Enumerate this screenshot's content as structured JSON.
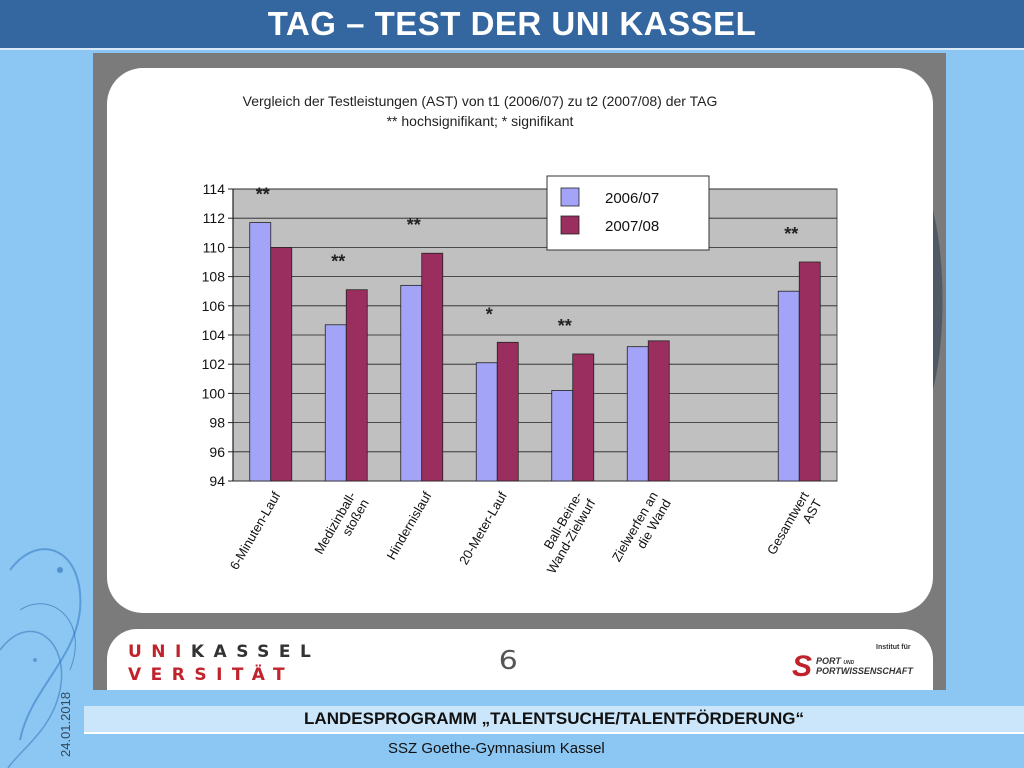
{
  "header": {
    "title": "TAG – TEST DER UNI KASSEL"
  },
  "chart_data": {
    "type": "bar",
    "title": "Vergleich der Testleistungen (AST) von t1 (2006/07) zu t2 (2007/08) der TAG",
    "subtitle": "** hochsignifikant; * signifikant",
    "categories": [
      "6-Minuten-Lauf",
      "Medizinball-\nstoßen",
      "Hindernislauf",
      "20-Meter-Lauf",
      "Ball-Beine-\nWand-Zielwurf",
      "Zielwerfen an\ndie Wand",
      "",
      "Gesamtwert\nAST"
    ],
    "series": [
      {
        "name": "2006/07",
        "color": "#a3a3f7",
        "values": [
          111.7,
          104.7,
          107.4,
          102.1,
          100.2,
          103.2,
          null,
          107.0
        ]
      },
      {
        "name": "2007/08",
        "color": "#9a2f5f",
        "values": [
          110.0,
          107.1,
          109.6,
          103.5,
          102.7,
          103.6,
          null,
          109.0
        ]
      }
    ],
    "significance": [
      "**",
      "**",
      "**",
      "*",
      "**",
      "",
      "",
      "**"
    ],
    "ylim": [
      94,
      114
    ],
    "yticks": [
      94,
      96,
      98,
      100,
      102,
      104,
      106,
      108,
      110,
      112,
      114
    ],
    "grid": true,
    "legend_position": "top-right",
    "plot_background": "#c0c0c0"
  },
  "footer": {
    "uni_logo_top": [
      "UNI",
      "KASSEL"
    ],
    "uni_logo_bottom": [
      "VERSITÄT",
      ""
    ],
    "page_number": "6",
    "sport_logo": {
      "institut": "Institut für",
      "line1": "PORT",
      "line1_suffix": "UND",
      "line2": "PORTWISSENSCHAFT",
      "letter": "S"
    }
  },
  "date": "24.01.2018",
  "banner": {
    "text": "LANDESPROGRAMM „TALENTSUCHE/TALENTFÖRDERUNG“"
  },
  "school": {
    "text": "SSZ Goethe-Gymnasium Kassel"
  }
}
